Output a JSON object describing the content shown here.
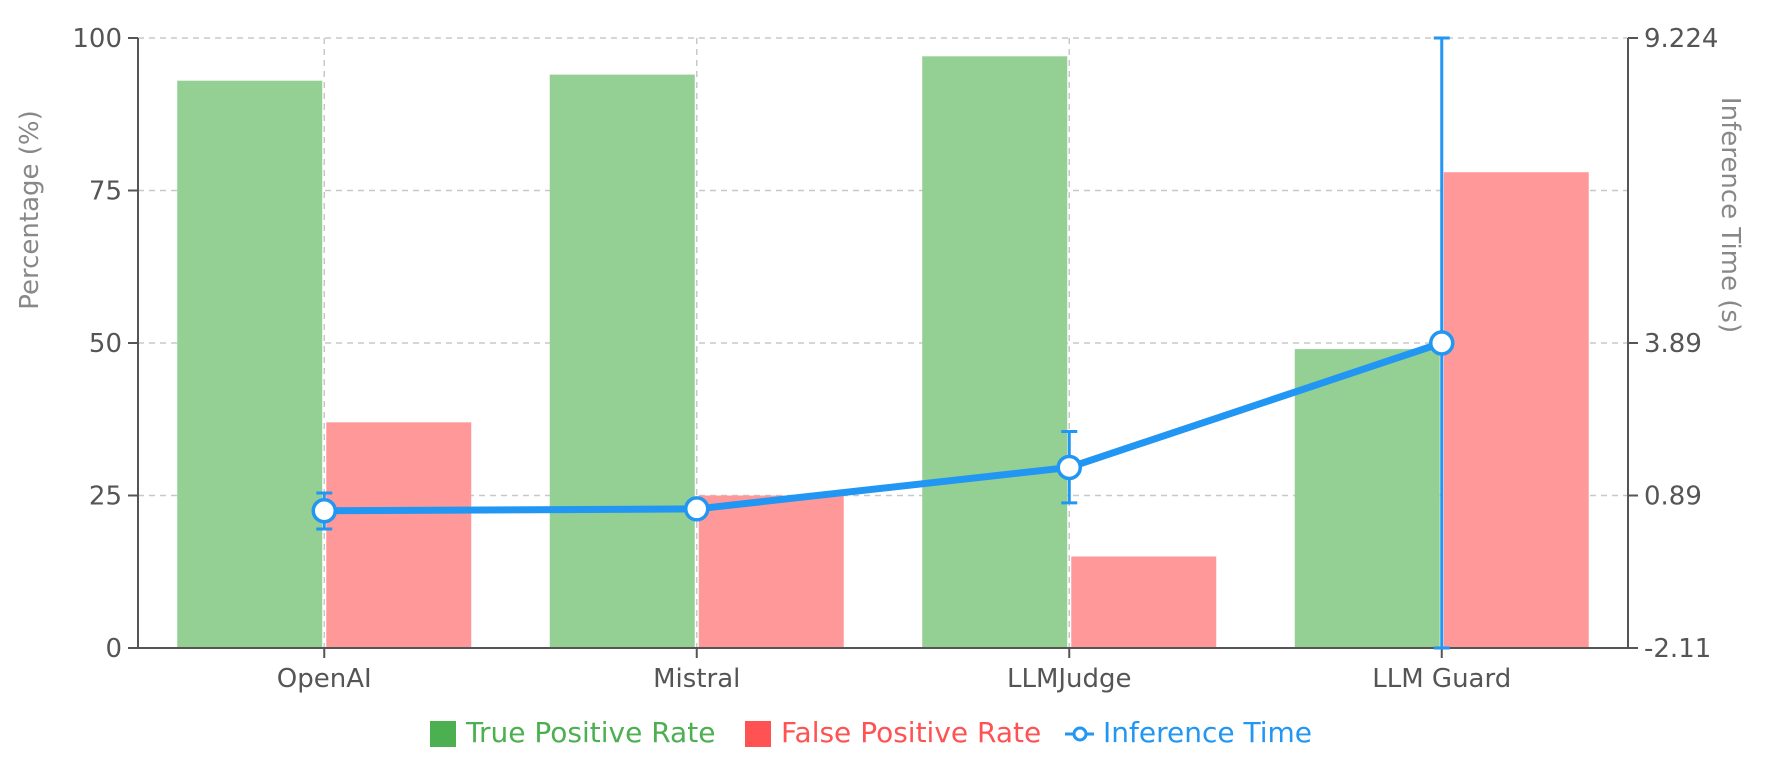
{
  "chart_data": {
    "type": "bar",
    "categories": [
      "OpenAI",
      "Mistral",
      "LLMJudge",
      "LLM Guard"
    ],
    "series": [
      {
        "name": "True Positive Rate",
        "type": "bar",
        "axis": "left",
        "color": "#4caf50",
        "fill": "#94cf94",
        "values": [
          93,
          94,
          97,
          49
        ]
      },
      {
        "name": "False Positive Rate",
        "type": "bar",
        "axis": "left",
        "color": "#ff5252",
        "fill": "#ff9999",
        "values": [
          37,
          25,
          15,
          78
        ]
      },
      {
        "name": "Inference Time",
        "type": "line",
        "axis": "right",
        "color": "#2196f3",
        "values_pct": [
          22.5,
          22.8,
          29.6,
          50.0
        ],
        "error_low_pct": [
          19.5,
          null,
          23.8,
          0
        ],
        "error_high_pct": [
          25.4,
          null,
          35.5,
          100
        ]
      }
    ],
    "left_axis": {
      "label": "Percentage (%)",
      "ticks": [
        "0",
        "25",
        "50",
        "75",
        "100"
      ],
      "range": [
        0,
        100
      ]
    },
    "right_axis": {
      "label": "Inference Time (s)",
      "ticks": [
        "-2.11",
        "0.89",
        "3.89",
        "9.224"
      ],
      "tick_positions_pct": [
        0,
        25,
        50,
        100
      ]
    },
    "grid": true,
    "legend_position": "bottom"
  }
}
